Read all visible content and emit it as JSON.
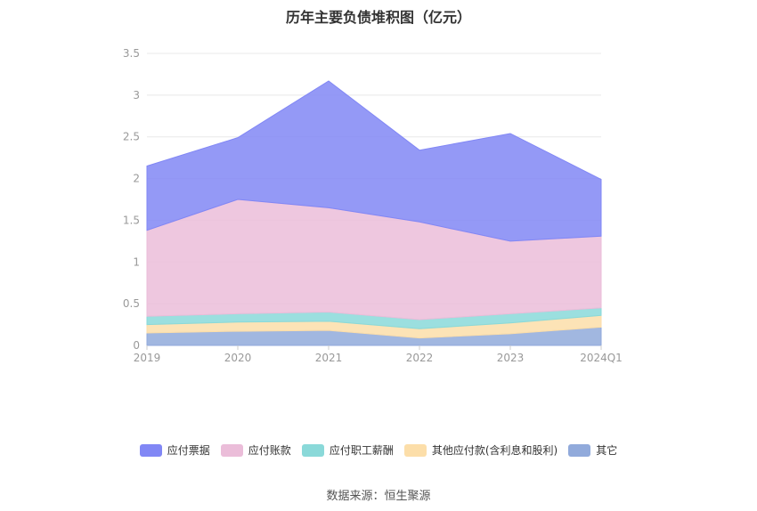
{
  "chart_data": {
    "type": "area",
    "stacked": true,
    "title": "历年主要负债堆积图（亿元）",
    "categories": [
      "2019",
      "2020",
      "2021",
      "2022",
      "2023",
      "2024Q1"
    ],
    "ylim": [
      0,
      3.5
    ],
    "yticks": [
      "0",
      "0.5",
      "1",
      "1.5",
      "2",
      "2.5",
      "3",
      "3.5"
    ],
    "grid": true,
    "legend_position": "bottom",
    "series": [
      {
        "name": "其它",
        "color": "#91aadb",
        "values": [
          0.15,
          0.17,
          0.18,
          0.09,
          0.14,
          0.22
        ]
      },
      {
        "name": "其他应付款(含利息和股利)",
        "color": "#fcdea9",
        "values": [
          0.1,
          0.11,
          0.11,
          0.11,
          0.13,
          0.14
        ]
      },
      {
        "name": "应付职工薪酬",
        "color": "#8ad9d9",
        "values": [
          0.1,
          0.1,
          0.11,
          0.11,
          0.11,
          0.09
        ]
      },
      {
        "name": "应付账款",
        "color": "#ebbdd9",
        "values": [
          1.03,
          1.37,
          1.25,
          1.17,
          0.87,
          0.86
        ]
      },
      {
        "name": "应付票据",
        "color": "#8187f5",
        "values": [
          0.77,
          0.74,
          1.52,
          0.86,
          1.29,
          0.68
        ]
      }
    ]
  },
  "legend": [
    {
      "label": "应付票据",
      "color": "#8187f5"
    },
    {
      "label": "应付账款",
      "color": "#ebbdd9"
    },
    {
      "label": "应付职工薪酬",
      "color": "#8ad9d9"
    },
    {
      "label": "其他应付款(含利息和股利)",
      "color": "#fcdea9"
    },
    {
      "label": "其它",
      "color": "#91aadb"
    }
  ],
  "source": "数据来源：恒生聚源"
}
